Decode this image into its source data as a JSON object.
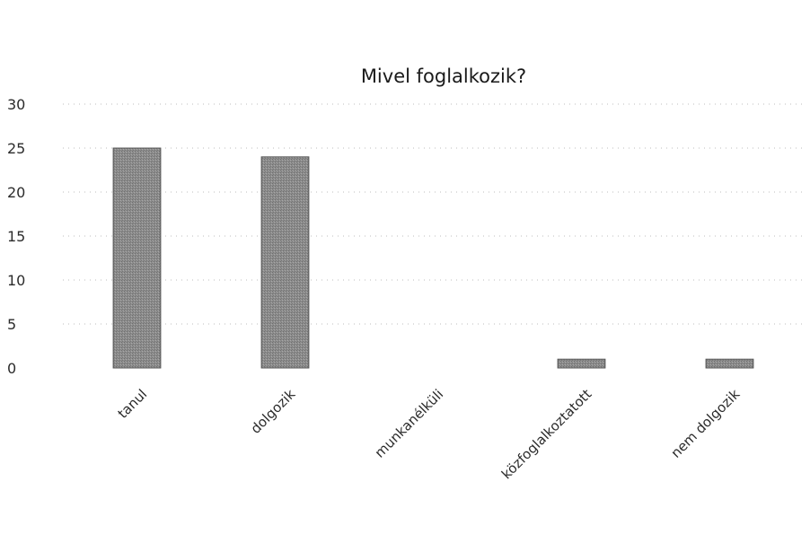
{
  "chart_data": {
    "type": "bar",
    "title": "Mivel foglalkozik?",
    "xlabel": "",
    "ylabel": "",
    "categories": [
      "tanul",
      "dolgozik",
      "munkanélküli",
      "közfoglalkoztatott",
      "nem dolgozik"
    ],
    "values": [
      25,
      24,
      0,
      1,
      1
    ],
    "ylim": [
      0,
      30
    ],
    "yticks": [
      "0",
      "5",
      "10",
      "15",
      "20",
      "25",
      "30"
    ],
    "grid": true,
    "legend": "none",
    "colors": {
      "bar_fill": "#8a8a8a",
      "bar_edge": "#555555",
      "gridline": "#bdbdbd",
      "text": "#2b2b2b"
    }
  }
}
